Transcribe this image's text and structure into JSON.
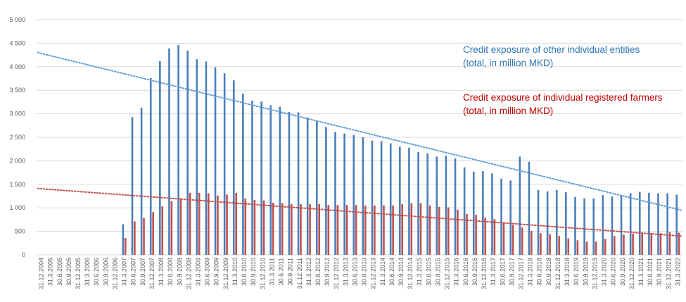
{
  "chart_data": {
    "type": "bar",
    "ylim": [
      0,
      5000
    ],
    "yticks": [
      "5 000",
      "4 500",
      "4 000",
      "3 500",
      "3 000",
      "2 500",
      "2 000",
      "1 500",
      "1 000",
      "500",
      "0"
    ],
    "ytick_values": [
      5000,
      4500,
      4000,
      3500,
      3000,
      2500,
      2000,
      1500,
      1000,
      500,
      0
    ],
    "grid": true,
    "categories": [
      "31.12.2004",
      "31.3.2005",
      "30.6.2005",
      "30.9.2005",
      "31.12.2005",
      "31.3.2006",
      "30.6.2006",
      "30.9.2006",
      "31.12.2006",
      "31.3.2007",
      "30.6.2007",
      "30.9.2007",
      "31.12.2007",
      "31.3.2008",
      "30.6.2008",
      "30.9.2008",
      "31.12.2008",
      "31.3.2009",
      "30.6.2009",
      "30.9.2009",
      "31.12.2009",
      "31.3.2010",
      "30.6.2010",
      "30.9.2010",
      "31.12.2010",
      "31.3.2011",
      "30.6.2011",
      "30.9.2011",
      "31.12.2011",
      "31.3.2012",
      "30.6.2012",
      "30.9.2012",
      "31.12.2012",
      "31.3.2013",
      "30.6.2013",
      "30.9.2013",
      "31.12.2013",
      "31.3.2014",
      "30.6.2014",
      "30.9.2014",
      "31.12.2014",
      "31.3.2015",
      "30.6.2015",
      "30.9.2015",
      "31.12.2015",
      "31.3.2016",
      "30.6.2016",
      "30.9.2016",
      "31.12.2016",
      "31.3.2017",
      "30.6.2017",
      "30.9.2017",
      "31.12.2017",
      "31.3.2018",
      "30.6.2018",
      "30.9.2018",
      "31.12.2018",
      "31.3.2019",
      "30.6.2019",
      "30.9.2019",
      "31.12.2019",
      "31.3.2020",
      "30.6.2020",
      "30.9.2020",
      "31.12.2020",
      "31.3.2021",
      "30.6.2021",
      "30.9.2021",
      "31.12.2021",
      "31.3.2022"
    ],
    "series": [
      {
        "name": "Credit exposure of other individual entities\n(total, in million MKD)",
        "color": "#4a7ebb",
        "values": [
          0,
          0,
          0,
          0,
          0,
          0,
          0,
          0,
          0,
          650,
          2930,
          3130,
          3760,
          4120,
          4390,
          4460,
          4340,
          4160,
          4110,
          3990,
          3860,
          3710,
          3430,
          3280,
          3260,
          3180,
          3150,
          3040,
          3030,
          2920,
          2850,
          2720,
          2610,
          2580,
          2550,
          2500,
          2430,
          2420,
          2370,
          2300,
          2280,
          2190,
          2160,
          2090,
          2110,
          2050,
          1860,
          1770,
          1780,
          1730,
          1620,
          1580,
          2090,
          1980,
          1380,
          1350,
          1380,
          1330,
          1230,
          1200,
          1200,
          1270,
          1240,
          1250,
          1310,
          1340,
          1320,
          1310,
          1310,
          1280
        ]
      },
      {
        "name": "Credit exposure of individual registered farmers\n(total, in million MKD)",
        "color": "#c0504d",
        "values": [
          0,
          0,
          0,
          0,
          0,
          0,
          0,
          0,
          0,
          360,
          710,
          780,
          910,
          1030,
          1140,
          1200,
          1320,
          1320,
          1310,
          1260,
          1280,
          1320,
          1200,
          1170,
          1160,
          1110,
          1100,
          1080,
          1080,
          1080,
          1080,
          1060,
          1060,
          1060,
          1060,
          1050,
          1050,
          1050,
          1050,
          1080,
          1100,
          1100,
          1050,
          1020,
          1010,
          960,
          870,
          850,
          790,
          760,
          690,
          640,
          580,
          510,
          460,
          440,
          400,
          350,
          310,
          280,
          280,
          340,
          400,
          430,
          450,
          460,
          460,
          460,
          480,
          470
        ]
      }
    ],
    "trendlines": [
      {
        "series": "blue",
        "start": 4300,
        "end": 950
      },
      {
        "series": "red",
        "start": 1410,
        "end": 400
      }
    ]
  }
}
